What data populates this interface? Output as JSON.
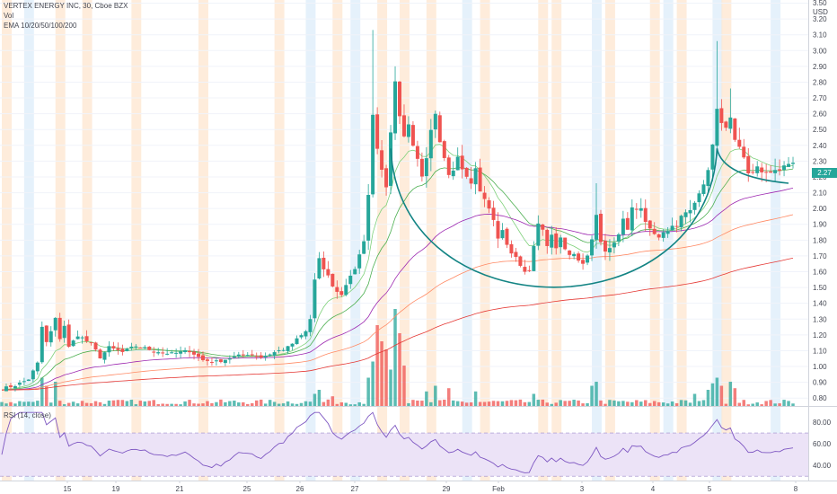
{
  "legend": {
    "title": "VERTEX ENERGY INC, 30, Cboe BZX",
    "vol": "Vol",
    "ema": "EMA 10/20/50/100/200",
    "rsi": "RSI (14, close)"
  },
  "colors": {
    "up": "#26a69a",
    "down": "#ef5350",
    "ema10": "#7ed07a",
    "ema20": "#4caf50",
    "ema50": "#9c27b0",
    "ema100": "#ff8a65",
    "ema200": "#e53935",
    "rsi_line": "#7e57c2",
    "rsi_band": "#ece3f7",
    "session_orange": "#fde6cf",
    "session_blue": "#dcecf9",
    "cup": "#138484",
    "price_tag": "#26a69a"
  },
  "chart_data": {
    "type": "candlestick",
    "title": "VERTEX ENERGY INC, 30, Cboe BZX",
    "currency": "USD",
    "price_axis": {
      "ylim": [
        0.75,
        3.32
      ],
      "ticks": [
        "0.80",
        "0.90",
        "1.00",
        "1.10",
        "1.20",
        "1.30",
        "1.40",
        "1.50",
        "1.60",
        "1.70",
        "1.80",
        "1.90",
        "2.00",
        "2.10",
        "2.20",
        "2.30",
        "2.40",
        "2.50",
        "2.60",
        "2.70",
        "2.80",
        "2.90",
        "3.00",
        "3.10",
        "3.20",
        "3.30"
      ],
      "top_label": "3.50",
      "last_price": "2.27"
    },
    "rsi_axis": {
      "ylim": [
        26,
        90
      ],
      "ticks": [
        "40.00",
        "60.00",
        "80.00"
      ],
      "band": [
        30,
        70
      ]
    },
    "x_tick_labels": [
      "15",
      "19",
      "21",
      "25",
      "26",
      "27",
      "29",
      "Feb",
      "3",
      "4",
      "5",
      "8"
    ],
    "volume_scale": 1,
    "price_path": [
      [
        0,
        0.86
      ],
      [
        3,
        0.88
      ],
      [
        6,
        0.92
      ],
      [
        8,
        1.02
      ],
      [
        9,
        1.25
      ],
      [
        10,
        1.15
      ],
      [
        11,
        1.22
      ],
      [
        12,
        1.3
      ],
      [
        13,
        1.18
      ],
      [
        14,
        1.26
      ],
      [
        15,
        1.12
      ],
      [
        17,
        1.2
      ],
      [
        20,
        1.14
      ],
      [
        22,
        1.06
      ],
      [
        24,
        1.12
      ],
      [
        27,
        1.09
      ],
      [
        30,
        1.13
      ],
      [
        34,
        1.1
      ],
      [
        38,
        1.08
      ],
      [
        42,
        1.1
      ],
      [
        45,
        1.04
      ],
      [
        48,
        1.03
      ],
      [
        52,
        1.06
      ],
      [
        55,
        1.08
      ],
      [
        58,
        1.06
      ],
      [
        61,
        1.09
      ],
      [
        64,
        1.12
      ],
      [
        66,
        1.17
      ],
      [
        68,
        1.22
      ],
      [
        69,
        1.3
      ],
      [
        70,
        1.55
      ],
      [
        71,
        1.68
      ],
      [
        72,
        1.6
      ],
      [
        73,
        1.58
      ],
      [
        74,
        1.5
      ],
      [
        75,
        1.48
      ],
      [
        76,
        1.45
      ],
      [
        77,
        1.52
      ],
      [
        78,
        1.58
      ],
      [
        79,
        1.62
      ],
      [
        80,
        1.7
      ],
      [
        81,
        1.78
      ],
      [
        82,
        2.1
      ],
      [
        83,
        2.58
      ],
      [
        84,
        2.4
      ],
      [
        85,
        2.25
      ],
      [
        86,
        2.15
      ],
      [
        87,
        2.5
      ],
      [
        88,
        2.78
      ],
      [
        89,
        2.6
      ],
      [
        90,
        2.45
      ],
      [
        91,
        2.55
      ],
      [
        92,
        2.4
      ],
      [
        94,
        2.22
      ],
      [
        95,
        2.3
      ],
      [
        96,
        2.48
      ],
      [
        97,
        2.58
      ],
      [
        98,
        2.4
      ],
      [
        99,
        2.3
      ],
      [
        100,
        2.2
      ],
      [
        101,
        2.25
      ],
      [
        102,
        2.35
      ],
      [
        103,
        2.26
      ],
      [
        104,
        2.22
      ],
      [
        105,
        2.18
      ],
      [
        106,
        2.25
      ],
      [
        107,
        2.12
      ],
      [
        108,
        2.05
      ],
      [
        109,
        2.0
      ],
      [
        110,
        1.92
      ],
      [
        111,
        1.82
      ],
      [
        112,
        1.85
      ],
      [
        113,
        1.78
      ],
      [
        114,
        1.72
      ],
      [
        115,
        1.68
      ],
      [
        116,
        1.65
      ],
      [
        117,
        1.6
      ],
      [
        118,
        1.62
      ],
      [
        119,
        1.75
      ],
      [
        120,
        1.9
      ],
      [
        121,
        1.85
      ],
      [
        122,
        1.78
      ],
      [
        123,
        1.82
      ],
      [
        124,
        1.76
      ],
      [
        125,
        1.8
      ],
      [
        126,
        1.74
      ],
      [
        127,
        1.7
      ],
      [
        128,
        1.72
      ],
      [
        129,
        1.68
      ],
      [
        130,
        1.66
      ],
      [
        131,
        1.7
      ],
      [
        132,
        1.82
      ],
      [
        133,
        1.95
      ],
      [
        134,
        1.78
      ],
      [
        135,
        1.72
      ],
      [
        136,
        1.75
      ],
      [
        137,
        1.8
      ],
      [
        138,
        1.85
      ],
      [
        139,
        1.92
      ],
      [
        140,
        1.88
      ],
      [
        141,
        2.0
      ],
      [
        142,
        1.98
      ],
      [
        143,
        2.02
      ],
      [
        144,
        1.9
      ],
      [
        145,
        1.86
      ],
      [
        146,
        1.82
      ],
      [
        147,
        1.8
      ],
      [
        148,
        1.84
      ],
      [
        149,
        1.86
      ],
      [
        150,
        1.9
      ],
      [
        151,
        1.88
      ],
      [
        152,
        1.94
      ],
      [
        153,
        1.98
      ],
      [
        154,
        2.0
      ],
      [
        155,
        2.04
      ],
      [
        156,
        2.08
      ],
      [
        157,
        2.15
      ],
      [
        158,
        2.25
      ],
      [
        159,
        2.4
      ],
      [
        160,
        2.62
      ],
      [
        161,
        2.55
      ],
      [
        162,
        2.5
      ],
      [
        163,
        2.58
      ],
      [
        164,
        2.45
      ],
      [
        165,
        2.4
      ],
      [
        166,
        2.3
      ],
      [
        167,
        2.2
      ],
      [
        168,
        2.22
      ],
      [
        169,
        2.25
      ],
      [
        170,
        2.21
      ],
      [
        171,
        2.24
      ],
      [
        172,
        2.22
      ],
      [
        173,
        2.26
      ],
      [
        174,
        2.24
      ],
      [
        175,
        2.27
      ]
    ],
    "wick_spikes": [
      [
        83,
        3.13
      ],
      [
        88,
        2.9
      ],
      [
        97,
        2.62
      ],
      [
        133,
        2.16
      ],
      [
        160,
        3.06
      ],
      [
        163,
        2.76
      ]
    ],
    "volume_spikes": [
      [
        9,
        0.35
      ],
      [
        10,
        0.25
      ],
      [
        12,
        0.3
      ],
      [
        70,
        0.15
      ],
      [
        71,
        0.2
      ],
      [
        74,
        0.12
      ],
      [
        82,
        0.35
      ],
      [
        83,
        0.55
      ],
      [
        84,
        1.0
      ],
      [
        85,
        0.8
      ],
      [
        86,
        0.7
      ],
      [
        87,
        0.45
      ],
      [
        88,
        1.2
      ],
      [
        89,
        0.9
      ],
      [
        90,
        0.5
      ],
      [
        95,
        0.18
      ],
      [
        97,
        0.25
      ],
      [
        100,
        0.22
      ],
      [
        106,
        0.18
      ],
      [
        119,
        0.15
      ],
      [
        132,
        0.25
      ],
      [
        133,
        0.3
      ],
      [
        155,
        0.15
      ],
      [
        158,
        0.2
      ],
      [
        159,
        0.28
      ],
      [
        160,
        0.35
      ],
      [
        161,
        0.25
      ],
      [
        163,
        0.3
      ],
      [
        164,
        0.22
      ]
    ],
    "cup_and_handle": {
      "cup_left": [
        87,
        2.38
      ],
      "cup_bottom": 1.55,
      "cup_right": [
        160,
        2.38
      ],
      "handle_end": [
        176,
        2.16
      ]
    },
    "sessions": [
      [
        1,
        "orange"
      ],
      [
        6,
        "blue"
      ],
      [
        13,
        "orange"
      ],
      [
        19,
        "orange"
      ],
      [
        30,
        "orange"
      ],
      [
        45,
        "orange"
      ],
      [
        62,
        "orange"
      ],
      [
        69,
        "blue"
      ],
      [
        75,
        "orange"
      ],
      [
        79,
        "blue"
      ],
      [
        85,
        "orange"
      ],
      [
        90,
        "orange"
      ],
      [
        96,
        "orange"
      ],
      [
        104,
        "blue"
      ],
      [
        108,
        "orange"
      ],
      [
        121,
        "orange"
      ],
      [
        124,
        "orange"
      ],
      [
        133,
        "blue"
      ],
      [
        136,
        "orange"
      ],
      [
        146,
        "orange"
      ],
      [
        149,
        "blue"
      ],
      [
        152,
        "orange"
      ],
      [
        160,
        "blue"
      ],
      [
        162,
        "orange"
      ],
      [
        173,
        "blue"
      ]
    ]
  }
}
